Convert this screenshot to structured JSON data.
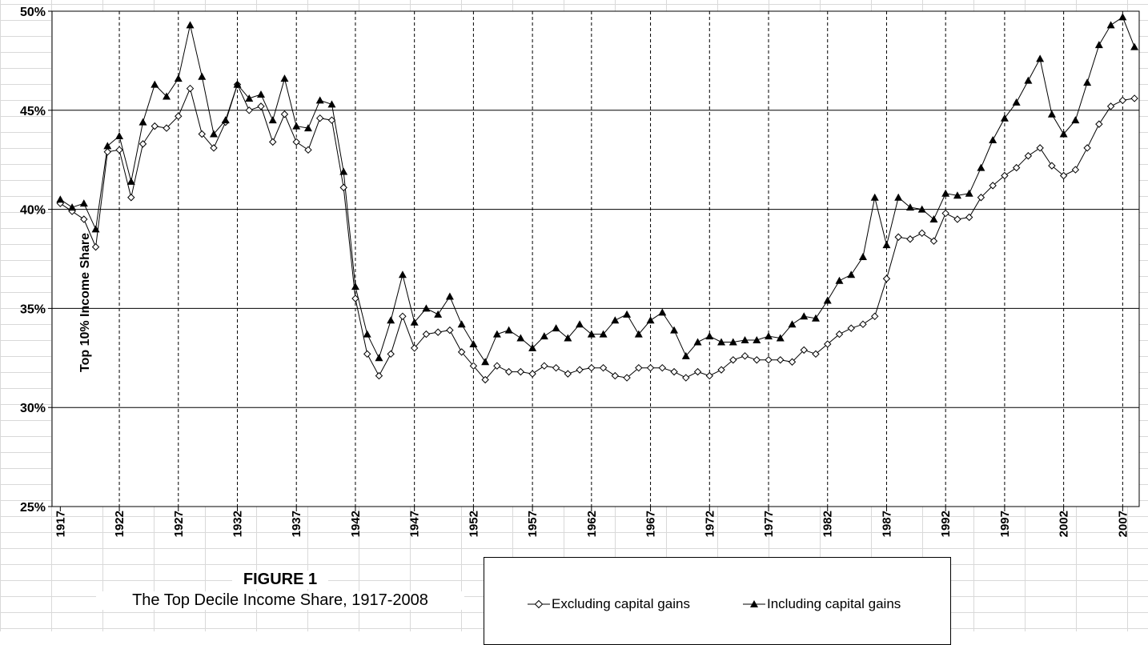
{
  "figure_number": "FIGURE 1",
  "figure_title": "The Top Decile Income Share, 1917-2008",
  "legend": {
    "excluding": "Excluding capital gains",
    "including": "Including capital gains"
  },
  "colors": {
    "line": "#000000",
    "grid": "#000000",
    "cell_grid": "#d9d9d9"
  },
  "chart_data": {
    "type": "line",
    "ylabel": "Top 10% Income Share",
    "xlabel": "",
    "ylim": [
      25,
      50
    ],
    "yticks": [
      "25%",
      "30%",
      "35%",
      "40%",
      "45%",
      "50%"
    ],
    "xlim": [
      1917,
      2008
    ],
    "xticks": [
      "1917",
      "1922",
      "1927",
      "1932",
      "1937",
      "1942",
      "1947",
      "1952",
      "1957",
      "1962",
      "1967",
      "1972",
      "1977",
      "1982",
      "1987",
      "1992",
      "1997",
      "2002",
      "2007"
    ],
    "grid": "horizontal solid, vertical dashed",
    "legend_position": "bottom",
    "series": [
      {
        "name": "Excluding capital gains",
        "marker": "open-diamond",
        "x_start": 1917,
        "values": [
          40.3,
          39.9,
          39.5,
          38.1,
          42.9,
          43.0,
          40.6,
          43.3,
          44.2,
          44.1,
          44.7,
          46.1,
          43.8,
          43.1,
          44.4,
          46.3,
          45.0,
          45.2,
          43.4,
          44.8,
          43.4,
          43.0,
          44.6,
          44.5,
          41.1,
          35.5,
          32.7,
          31.6,
          32.7,
          34.6,
          33.0,
          33.7,
          33.8,
          33.9,
          32.8,
          32.1,
          31.4,
          32.1,
          31.8,
          31.8,
          31.7,
          32.1,
          32.0,
          31.7,
          31.9,
          32.0,
          32.0,
          31.6,
          31.5,
          32.0,
          32.0,
          32.0,
          31.8,
          31.5,
          31.8,
          31.6,
          31.9,
          32.4,
          32.6,
          32.4,
          32.4,
          32.4,
          32.3,
          32.9,
          32.7,
          33.2,
          33.7,
          34.0,
          34.2,
          34.6,
          36.5,
          38.6,
          38.5,
          38.8,
          38.4,
          39.8,
          39.5,
          39.6,
          40.6,
          41.2,
          41.7,
          42.1,
          42.7,
          43.1,
          42.2,
          41.7,
          42.0,
          43.1,
          44.3,
          45.2,
          45.5,
          45.6
        ]
      },
      {
        "name": "Including capital gains",
        "marker": "filled-triangle",
        "x_start": 1917,
        "values": [
          40.5,
          40.1,
          40.3,
          39.0,
          43.2,
          43.7,
          41.4,
          44.4,
          46.3,
          45.7,
          46.6,
          49.3,
          46.7,
          43.8,
          44.5,
          46.3,
          45.6,
          45.8,
          44.5,
          46.6,
          44.2,
          44.1,
          45.5,
          45.3,
          41.9,
          36.1,
          33.7,
          32.5,
          34.4,
          36.7,
          34.3,
          35.0,
          34.7,
          35.6,
          34.2,
          33.2,
          32.3,
          33.7,
          33.9,
          33.5,
          33.0,
          33.6,
          34.0,
          33.5,
          34.2,
          33.7,
          33.7,
          34.4,
          34.7,
          33.7,
          34.4,
          34.8,
          33.9,
          32.6,
          33.3,
          33.6,
          33.3,
          33.3,
          33.4,
          33.4,
          33.6,
          33.5,
          34.2,
          34.6,
          34.5,
          35.4,
          36.4,
          36.7,
          37.6,
          40.6,
          38.2,
          40.6,
          40.1,
          40.0,
          39.5,
          40.8,
          40.7,
          40.8,
          42.1,
          43.5,
          44.6,
          45.4,
          46.5,
          47.6,
          44.8,
          43.8,
          44.5,
          46.4,
          48.3,
          49.3,
          49.7,
          48.2
        ]
      }
    ]
  }
}
